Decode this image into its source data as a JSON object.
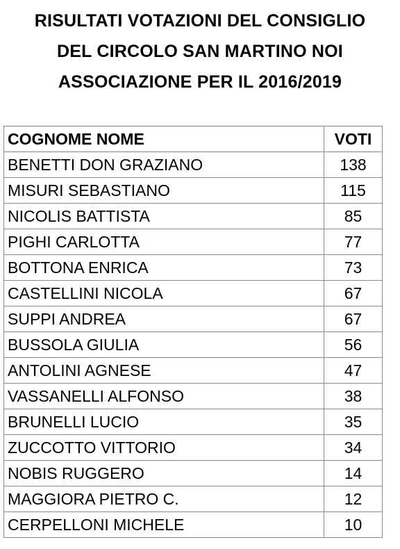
{
  "title": {
    "line1": "RISULTATI VOTAZIONI DEL CONSIGLIO",
    "line2": "DEL CIRCOLO SAN MARTINO NOI",
    "line3": "ASSOCIAZIONE PER IL 2016/2019"
  },
  "table": {
    "headers": {
      "name": "COGNOME NOME",
      "votes": "VOTI"
    },
    "rows": [
      {
        "name": "BENETTI DON GRAZIANO",
        "votes": "138"
      },
      {
        "name": "MISURI SEBASTIANO",
        "votes": "115"
      },
      {
        "name": "NICOLIS BATTISTA",
        "votes": "85"
      },
      {
        "name": "PIGHI CARLOTTA",
        "votes": "77"
      },
      {
        "name": "BOTTONA ENRICA",
        "votes": "73"
      },
      {
        "name": "CASTELLINI NICOLA",
        "votes": "67"
      },
      {
        "name": "SUPPI ANDREA",
        "votes": "67"
      },
      {
        "name": "BUSSOLA GIULIA",
        "votes": "56"
      },
      {
        "name": "ANTOLINI AGNESE",
        "votes": "47"
      },
      {
        "name": "VASSANELLI ALFONSO",
        "votes": "38"
      },
      {
        "name": "BRUNELLI LUCIO",
        "votes": "35"
      },
      {
        "name": "ZUCCOTTO VITTORIO",
        "votes": "34"
      },
      {
        "name": "NOBIS RUGGERO",
        "votes": "14"
      },
      {
        "name": "MAGGIORA PIETRO C.",
        "votes": "12"
      },
      {
        "name": "CERPELLONI MICHELE",
        "votes": "10"
      }
    ]
  }
}
